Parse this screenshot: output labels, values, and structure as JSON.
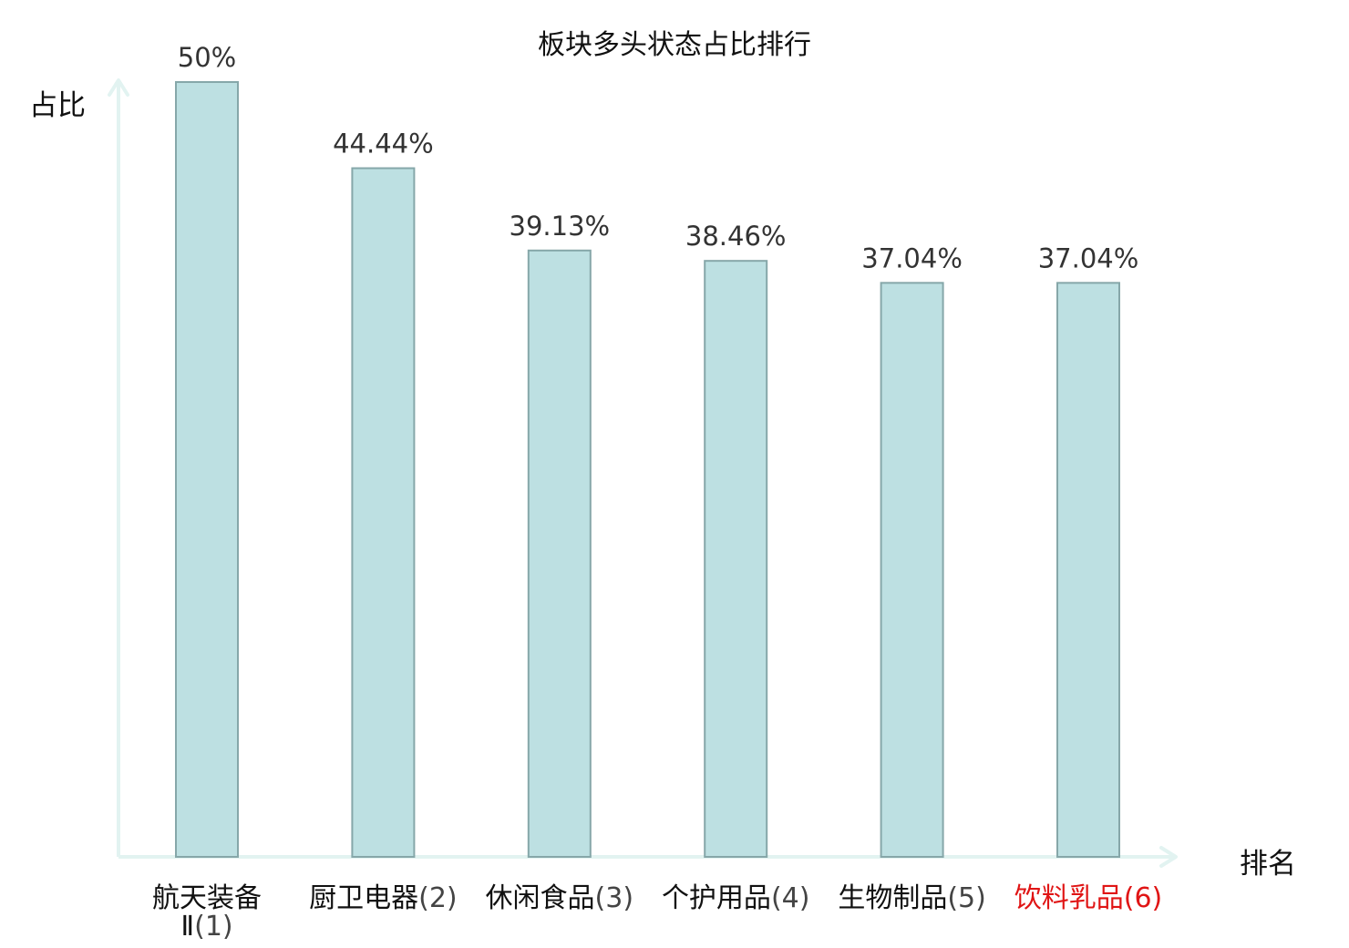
{
  "chart_data": {
    "type": "bar",
    "title": "板块多头状态占比排行",
    "xlabel": "排名",
    "ylabel": "占比",
    "categories": [
      {
        "name": "航天装备Ⅱ",
        "rank": "(1)"
      },
      {
        "name": "厨卫电器",
        "rank": "(2)"
      },
      {
        "name": "休闲食品",
        "rank": "(3)"
      },
      {
        "name": "个护用品",
        "rank": "(4)"
      },
      {
        "name": "生物制品",
        "rank": "(5)"
      },
      {
        "name": "饮料乳品",
        "rank": "(6)"
      }
    ],
    "values": [
      50,
      44.44,
      39.13,
      38.46,
      37.04,
      37.04
    ],
    "data_labels": [
      "50%",
      "44.44%",
      "39.13%",
      "38.46%",
      "37.04%",
      "37.04%"
    ],
    "highlight_index": 5,
    "ylim": [
      0,
      50
    ],
    "grid": false,
    "legend": "none",
    "colors": {
      "bar_fill": "#bde0e2",
      "bar_stroke": "#86a7a9",
      "axis": "#e2f3f1",
      "label_text": "#111111",
      "rank_text": "#444444",
      "value_text": "#333333",
      "highlight_text": "#e01515"
    }
  }
}
